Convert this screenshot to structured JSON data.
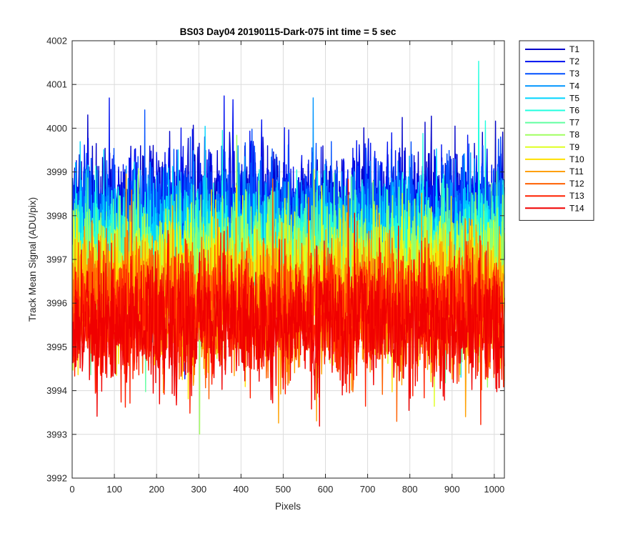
{
  "chart_data": {
    "type": "line",
    "title": "BS03 Day04 20190115-Dark-075 int time = 5 sec",
    "xlabel": "Pixels",
    "ylabel": "Track Mean Signal (ADU/pix)",
    "xlim": [
      0,
      1024
    ],
    "ylim": [
      3992,
      4002
    ],
    "xticks": [
      "0",
      "100",
      "200",
      "300",
      "400",
      "500",
      "600",
      "700",
      "800",
      "900",
      "1000"
    ],
    "yticks": [
      "3992",
      "3993",
      "3994",
      "3995",
      "3996",
      "3997",
      "3998",
      "3999",
      "4000",
      "4001",
      "4002"
    ],
    "grid": true,
    "legend_position": "outside-top-right",
    "x": "pixel index 1..1024 (one sample per pixel)",
    "series": [
      {
        "name": "T1",
        "color": "#0000c8",
        "mean": 3998.2,
        "spread": 0.95
      },
      {
        "name": "T2",
        "color": "#0010f0",
        "mean": 3998.1,
        "spread": 0.95
      },
      {
        "name": "T3",
        "color": "#0050ff",
        "mean": 3997.9,
        "spread": 0.95
      },
      {
        "name": "T4",
        "color": "#0095ff",
        "mean": 3997.6,
        "spread": 0.95
      },
      {
        "name": "T5",
        "color": "#00d5ff",
        "mean": 3997.3,
        "spread": 0.95
      },
      {
        "name": "T6",
        "color": "#20ffdf",
        "mean": 3997.1,
        "spread": 0.95
      },
      {
        "name": "T7",
        "color": "#60ffa0",
        "mean": 3996.9,
        "spread": 0.95
      },
      {
        "name": "T8",
        "color": "#a0ff60",
        "mean": 3996.7,
        "spread": 0.95
      },
      {
        "name": "T9",
        "color": "#dfff20",
        "mean": 3996.5,
        "spread": 0.95
      },
      {
        "name": "T10",
        "color": "#ffe000",
        "mean": 3996.3,
        "spread": 0.95
      },
      {
        "name": "T11",
        "color": "#ffa000",
        "mean": 3996.1,
        "spread": 0.95
      },
      {
        "name": "T12",
        "color": "#ff6000",
        "mean": 3995.9,
        "spread": 0.95
      },
      {
        "name": "T13",
        "color": "#ff2000",
        "mean": 3995.7,
        "spread": 0.95
      },
      {
        "name": "T14",
        "color": "#f00000",
        "mean": 3995.5,
        "spread": 0.95
      }
    ]
  }
}
